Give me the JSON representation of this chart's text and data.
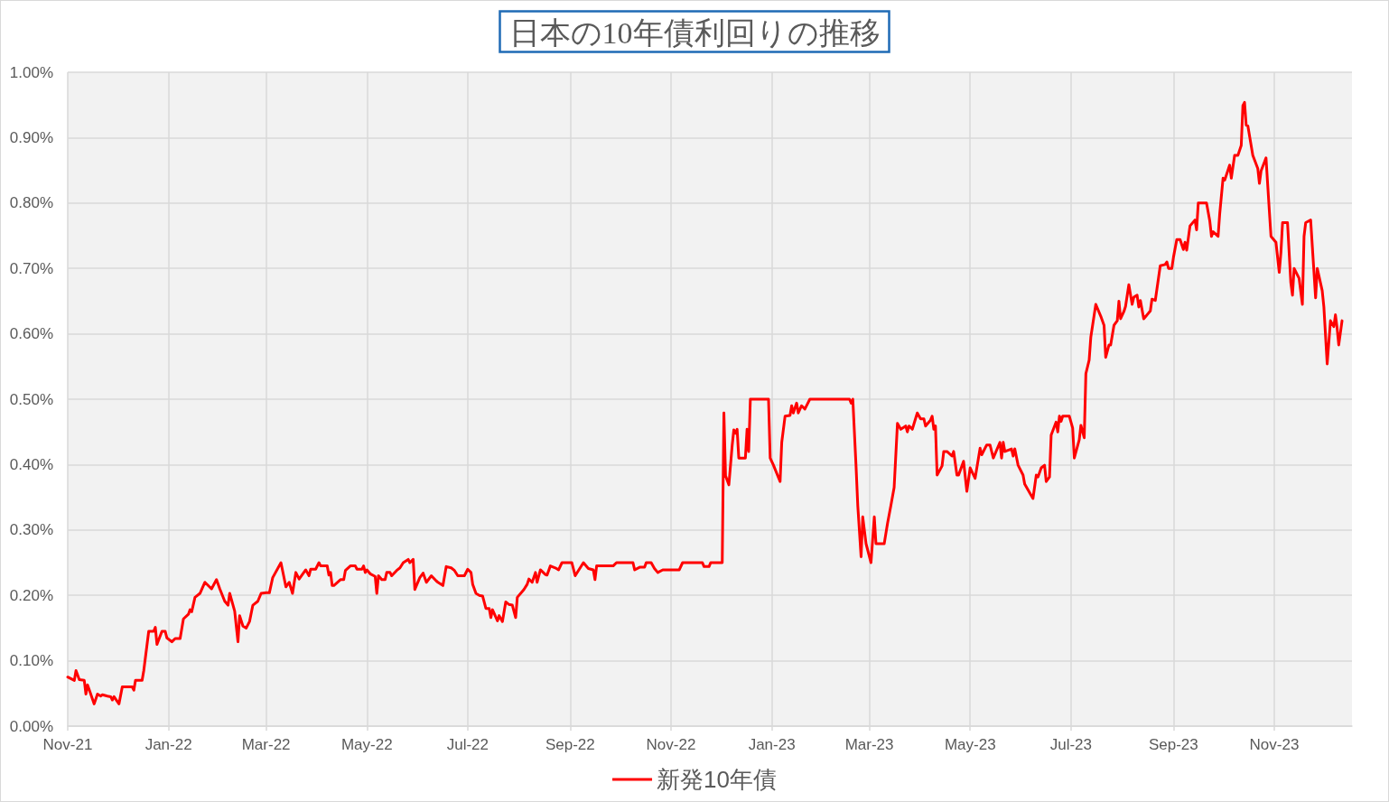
{
  "chart_data": {
    "type": "line",
    "title": "日本の10年債利回りの推移",
    "x": [
      "2021-11-01",
      "2021-11-05",
      "2021-11-06",
      "2021-11-08",
      "2021-11-11",
      "2021-11-12",
      "2021-11-13",
      "2021-11-17",
      "2021-11-19",
      "2021-11-21",
      "2021-11-22",
      "2021-11-25",
      "2021-11-27",
      "2021-11-28",
      "2021-11-29",
      "2021-12-02",
      "2021-12-04",
      "2021-12-10",
      "2021-12-11",
      "2021-12-12",
      "2021-12-16",
      "2021-12-17",
      "2021-12-20",
      "2021-12-23",
      "2021-12-24",
      "2021-12-25",
      "2021-12-28",
      "2021-12-30",
      "2021-12-31",
      "2022-01-03",
      "2022-01-05",
      "2022-01-08",
      "2022-01-10",
      "2022-01-13",
      "2022-01-14",
      "2022-01-15",
      "2022-01-17",
      "2022-01-20",
      "2022-01-23",
      "2022-01-27",
      "2022-01-30",
      "2022-02-01",
      "2022-02-04",
      "2022-02-06",
      "2022-02-07",
      "2022-02-10",
      "2022-02-12",
      "2022-02-13",
      "2022-02-15",
      "2022-02-17",
      "2022-02-19",
      "2022-02-21",
      "2022-02-24",
      "2022-02-26",
      "2022-03-01",
      "2022-03-03",
      "2022-03-05",
      "2022-03-10",
      "2022-03-13",
      "2022-03-15",
      "2022-03-17",
      "2022-03-19",
      "2022-03-21",
      "2022-03-25",
      "2022-03-27",
      "2022-03-28",
      "2022-03-31",
      "2022-04-02",
      "2022-04-03",
      "2022-04-07",
      "2022-04-08",
      "2022-04-09",
      "2022-04-10",
      "2022-04-11",
      "2022-04-15",
      "2022-04-17",
      "2022-04-18",
      "2022-04-21",
      "2022-04-24",
      "2022-04-25",
      "2022-04-28",
      "2022-04-29",
      "2022-04-30",
      "2022-05-01",
      "2022-05-03",
      "2022-05-06",
      "2022-05-07",
      "2022-05-08",
      "2022-05-10",
      "2022-05-12",
      "2022-05-13",
      "2022-05-15",
      "2022-05-16",
      "2022-05-19",
      "2022-05-21",
      "2022-05-23",
      "2022-05-26",
      "2022-05-27",
      "2022-05-29",
      "2022-05-30",
      "2022-06-02",
      "2022-06-04",
      "2022-06-06",
      "2022-06-09",
      "2022-06-12",
      "2022-06-13",
      "2022-06-16",
      "2022-06-18",
      "2022-06-21",
      "2022-06-23",
      "2022-06-25",
      "2022-06-29",
      "2022-07-01",
      "2022-07-03",
      "2022-07-04",
      "2022-07-06",
      "2022-07-08",
      "2022-07-10",
      "2022-07-12",
      "2022-07-14",
      "2022-07-15",
      "2022-07-16",
      "2022-07-19",
      "2022-07-20",
      "2022-07-22",
      "2022-07-24",
      "2022-07-26",
      "2022-07-28",
      "2022-07-30",
      "2022-07-31",
      "2022-08-04",
      "2022-08-06",
      "2022-08-07",
      "2022-08-09",
      "2022-08-11",
      "2022-08-12",
      "2022-08-14",
      "2022-08-17",
      "2022-08-18",
      "2022-08-20",
      "2022-08-23",
      "2022-08-25",
      "2022-08-27",
      "2022-09-02",
      "2022-09-04",
      "2022-09-09",
      "2022-09-12",
      "2022-09-15",
      "2022-09-16",
      "2022-09-17",
      "2022-09-27",
      "2022-09-29",
      "2022-10-09",
      "2022-10-10",
      "2022-10-13",
      "2022-10-16",
      "2022-10-17",
      "2022-10-20",
      "2022-10-22",
      "2022-10-24",
      "2022-10-27",
      "2022-11-06",
      "2022-11-08",
      "2022-11-20",
      "2022-11-21",
      "2022-11-24",
      "2022-11-25",
      "2022-12-02",
      "2022-12-03",
      "2022-12-04",
      "2022-12-06",
      "2022-12-08",
      "2022-12-09",
      "2022-12-10",
      "2022-12-11",
      "2022-12-12",
      "2022-12-16",
      "2022-12-17",
      "2022-12-18",
      "2022-12-19",
      "2022-12-30",
      "2022-12-31",
      "2023-01-02",
      "2023-01-06",
      "2023-01-07",
      "2023-01-09",
      "2023-01-12",
      "2023-01-13",
      "2023-01-14",
      "2023-01-16",
      "2023-01-17",
      "2023-01-19",
      "2023-01-21",
      "2023-01-24",
      "2023-02-17",
      "2023-02-18",
      "2023-02-19",
      "2023-02-21",
      "2023-02-22",
      "2023-02-24",
      "2023-02-25",
      "2023-02-27",
      "2023-03-02",
      "2023-03-04",
      "2023-03-05",
      "2023-03-10",
      "2023-03-12",
      "2023-03-14",
      "2023-03-16",
      "2023-03-18",
      "2023-03-20",
      "2023-03-23",
      "2023-03-24",
      "2023-03-25",
      "2023-03-27",
      "2023-03-30",
      "2023-04-01",
      "2023-04-03",
      "2023-04-04",
      "2023-04-07",
      "2023-04-08",
      "2023-04-09",
      "2023-04-10",
      "2023-04-11",
      "2023-04-14",
      "2023-04-15",
      "2023-04-17",
      "2023-04-20",
      "2023-04-21",
      "2023-04-23",
      "2023-04-24",
      "2023-04-27",
      "2023-04-29",
      "2023-05-01",
      "2023-05-04",
      "2023-05-07",
      "2023-05-08",
      "2023-05-11",
      "2023-05-13",
      "2023-05-15",
      "2023-05-19",
      "2023-05-20",
      "2023-05-21",
      "2023-05-22",
      "2023-05-26",
      "2023-05-27",
      "2023-05-28",
      "2023-05-30",
      "2023-06-02",
      "2023-06-03",
      "2023-06-08",
      "2023-06-10",
      "2023-06-11",
      "2023-06-13",
      "2023-06-15",
      "2023-06-16",
      "2023-06-18",
      "2023-06-19",
      "2023-06-22",
      "2023-06-23",
      "2023-06-24",
      "2023-06-25",
      "2023-06-26",
      "2023-06-30",
      "2023-07-02",
      "2023-07-03",
      "2023-07-06",
      "2023-07-07",
      "2023-07-09",
      "2023-07-10",
      "2023-07-12",
      "2023-07-13",
      "2023-07-16",
      "2023-07-19",
      "2023-07-21",
      "2023-07-22",
      "2023-07-24",
      "2023-07-25",
      "2023-07-27",
      "2023-07-29",
      "2023-07-30",
      "2023-07-31",
      "2023-08-02",
      "2023-08-03",
      "2023-08-05",
      "2023-08-07",
      "2023-08-08",
      "2023-08-10",
      "2023-08-11",
      "2023-08-12",
      "2023-08-14",
      "2023-08-18",
      "2023-08-19",
      "2023-08-21",
      "2023-08-24",
      "2023-08-27",
      "2023-08-28",
      "2023-08-29",
      "2023-08-31",
      "2023-09-01",
      "2023-09-03",
      "2023-09-05",
      "2023-09-07",
      "2023-09-08",
      "2023-09-09",
      "2023-09-11",
      "2023-09-14",
      "2023-09-15",
      "2023-09-16",
      "2023-09-21",
      "2023-09-23",
      "2023-09-24",
      "2023-09-25",
      "2023-09-28",
      "2023-09-29",
      "2023-10-01",
      "2023-10-02",
      "2023-10-05",
      "2023-10-06",
      "2023-10-08",
      "2023-10-10",
      "2023-10-12",
      "2023-10-13",
      "2023-10-14",
      "2023-10-15",
      "2023-10-16",
      "2023-10-19",
      "2023-10-22",
      "2023-10-23",
      "2023-10-24",
      "2023-10-27",
      "2023-10-29",
      "2023-10-30",
      "2023-11-02",
      "2023-11-04",
      "2023-11-05",
      "2023-11-06",
      "2023-11-09",
      "2023-11-11",
      "2023-11-12",
      "2023-11-13",
      "2023-11-16",
      "2023-11-18",
      "2023-11-19",
      "2023-11-20",
      "2023-11-23",
      "2023-11-26",
      "2023-11-27",
      "2023-11-30",
      "2023-12-01",
      "2023-12-03",
      "2023-12-05",
      "2023-12-07",
      "2023-12-08",
      "2023-12-09",
      "2023-12-10",
      "2023-12-12"
    ],
    "series": [
      {
        "name": "新発10年債",
        "color": "#ff0000",
        "values": [
          0.075,
          0.07,
          0.085,
          0.071,
          0.07,
          0.049,
          0.063,
          0.034,
          0.049,
          0.046,
          0.048,
          0.046,
          0.045,
          0.04,
          0.045,
          0.034,
          0.06,
          0.06,
          0.055,
          0.07,
          0.07,
          0.085,
          0.145,
          0.145,
          0.151,
          0.125,
          0.145,
          0.145,
          0.135,
          0.129,
          0.134,
          0.134,
          0.164,
          0.171,
          0.178,
          0.175,
          0.197,
          0.203,
          0.22,
          0.21,
          0.224,
          0.21,
          0.191,
          0.185,
          0.203,
          0.176,
          0.129,
          0.169,
          0.153,
          0.15,
          0.16,
          0.185,
          0.191,
          0.203,
          0.204,
          0.204,
          0.227,
          0.25,
          0.213,
          0.22,
          0.203,
          0.235,
          0.225,
          0.239,
          0.23,
          0.24,
          0.24,
          0.25,
          0.245,
          0.245,
          0.231,
          0.235,
          0.215,
          0.215,
          0.224,
          0.224,
          0.238,
          0.245,
          0.245,
          0.24,
          0.24,
          0.245,
          0.235,
          0.239,
          0.233,
          0.229,
          0.203,
          0.23,
          0.224,
          0.224,
          0.235,
          0.235,
          0.23,
          0.238,
          0.242,
          0.25,
          0.255,
          0.25,
          0.255,
          0.209,
          0.227,
          0.234,
          0.22,
          0.23,
          0.222,
          0.22,
          0.215,
          0.244,
          0.242,
          0.238,
          0.23,
          0.23,
          0.24,
          0.235,
          0.217,
          0.203,
          0.2,
          0.199,
          0.18,
          0.18,
          0.166,
          0.178,
          0.161,
          0.169,
          0.16,
          0.19,
          0.186,
          0.185,
          0.166,
          0.197,
          0.209,
          0.217,
          0.225,
          0.22,
          0.235,
          0.22,
          0.239,
          0.232,
          0.231,
          0.245,
          0.242,
          0.239,
          0.25,
          0.25,
          0.23,
          0.25,
          0.241,
          0.239,
          0.224,
          0.245,
          0.245,
          0.25,
          0.25,
          0.239,
          0.243,
          0.243,
          0.25,
          0.25,
          0.241,
          0.235,
          0.239,
          0.239,
          0.25,
          0.25,
          0.244,
          0.244,
          0.25,
          0.25,
          0.479,
          0.383,
          0.369,
          0.429,
          0.453,
          0.448,
          0.454,
          0.41,
          0.41,
          0.454,
          0.42,
          0.5,
          0.5,
          0.41,
          0.399,
          0.374,
          0.434,
          0.474,
          0.475,
          0.49,
          0.479,
          0.494,
          0.479,
          0.49,
          0.485,
          0.5,
          0.5,
          0.494,
          0.5,
          0.395,
          0.337,
          0.259,
          0.32,
          0.279,
          0.25,
          0.32,
          0.279,
          0.279,
          0.31,
          0.337,
          0.365,
          0.463,
          0.454,
          0.459,
          0.45,
          0.459,
          0.454,
          0.479,
          0.47,
          0.47,
          0.459,
          0.468,
          0.474,
          0.454,
          0.459,
          0.384,
          0.398,
          0.42,
          0.42,
          0.413,
          0.42,
          0.384,
          0.384,
          0.405,
          0.359,
          0.395,
          0.379,
          0.425,
          0.415,
          0.43,
          0.43,
          0.41,
          0.434,
          0.41,
          0.434,
          0.42,
          0.424,
          0.413,
          0.424,
          0.399,
          0.384,
          0.37,
          0.348,
          0.384,
          0.381,
          0.395,
          0.399,
          0.374,
          0.381,
          0.445,
          0.465,
          0.45,
          0.474,
          0.466,
          0.474,
          0.474,
          0.456,
          0.41,
          0.438,
          0.46,
          0.441,
          0.539,
          0.56,
          0.595,
          0.645,
          0.627,
          0.613,
          0.564,
          0.583,
          0.583,
          0.613,
          0.62,
          0.65,
          0.623,
          0.634,
          0.642,
          0.675,
          0.645,
          0.656,
          0.659,
          0.641,
          0.651,
          0.623,
          0.635,
          0.653,
          0.651,
          0.704,
          0.706,
          0.71,
          0.7,
          0.7,
          0.717,
          0.744,
          0.744,
          0.729,
          0.74,
          0.728,
          0.765,
          0.774,
          0.759,
          0.8,
          0.8,
          0.772,
          0.749,
          0.756,
          0.749,
          0.784,
          0.838,
          0.835,
          0.858,
          0.838,
          0.873,
          0.873,
          0.888,
          0.949,
          0.954,
          0.919,
          0.918,
          0.873,
          0.853,
          0.83,
          0.849,
          0.869,
          0.788,
          0.749,
          0.74,
          0.694,
          0.724,
          0.77,
          0.77,
          0.678,
          0.659,
          0.7,
          0.685,
          0.645,
          0.749,
          0.77,
          0.774,
          0.655,
          0.7,
          0.666,
          0.641,
          0.554,
          0.62,
          0.611,
          0.629,
          0.609,
          0.583,
          0.62
        ]
      }
    ],
    "xlim": [
      "2021-11-01",
      "2023-12-18"
    ],
    "xticks": [
      {
        "value": "2021-11-01",
        "label": "Nov-21"
      },
      {
        "value": "2022-01-01",
        "label": "Jan-22"
      },
      {
        "value": "2022-03-01",
        "label": "Mar-22"
      },
      {
        "value": "2022-05-01",
        "label": "May-22"
      },
      {
        "value": "2022-07-01",
        "label": "Jul-22"
      },
      {
        "value": "2022-09-01",
        "label": "Sep-22"
      },
      {
        "value": "2022-11-01",
        "label": "Nov-22"
      },
      {
        "value": "2023-01-01",
        "label": "Jan-23"
      },
      {
        "value": "2023-03-01",
        "label": "Mar-23"
      },
      {
        "value": "2023-05-01",
        "label": "May-23"
      },
      {
        "value": "2023-07-01",
        "label": "Jul-23"
      },
      {
        "value": "2023-09-01",
        "label": "Sep-23"
      },
      {
        "value": "2023-11-01",
        "label": "Nov-23"
      }
    ],
    "ylim": [
      0,
      1
    ],
    "yticks": [
      {
        "value": 0,
        "label": "0.00%"
      },
      {
        "value": 0.1,
        "label": "0.10%"
      },
      {
        "value": 0.2,
        "label": "0.20%"
      },
      {
        "value": 0.3,
        "label": "0.30%"
      },
      {
        "value": 0.4,
        "label": "0.40%"
      },
      {
        "value": 0.5,
        "label": "0.50%"
      },
      {
        "value": 0.6,
        "label": "0.60%"
      },
      {
        "value": 0.7,
        "label": "0.70%"
      },
      {
        "value": 0.8,
        "label": "0.80%"
      },
      {
        "value": 0.9,
        "label": "0.90%"
      },
      {
        "value": 1,
        "label": "1.00%"
      }
    ],
    "grid": true,
    "legend": "bottom",
    "marker": "none",
    "line_style": "solid"
  }
}
